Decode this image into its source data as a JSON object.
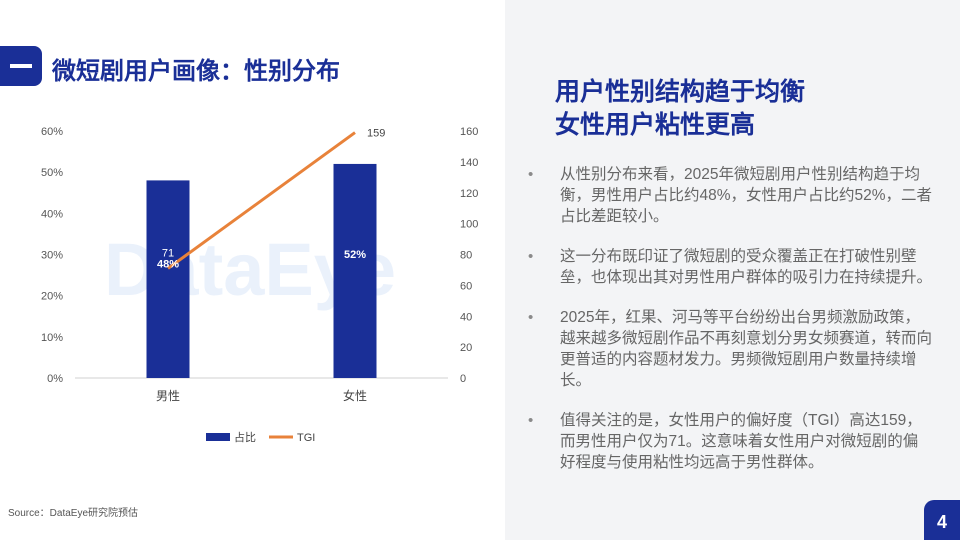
{
  "header": {
    "title": "微短剧用户画像：性别分布"
  },
  "watermark": "DataEye",
  "summary": {
    "headline_lines": [
      "用户性别结构趋于均衡",
      "女性用户粘性更高"
    ],
    "bullets": [
      "从性别分布来看，2025年微短剧用户性别结构趋于均衡，男性用户占比约48%，女性用户占比约52%，二者占比差距较小。",
      "这一分布既印证了微短剧的受众覆盖正在打破性别壁垒，也体现出其对男性用户群体的吸引力在持续提升。",
      "2025年，红果、河马等平台纷纷出台男频激励政策，越来越多微短剧作品不再刻意划分男女频赛道，转而向更普适的内容题材发力。男频微短剧用户数量持续增长。",
      "值得关注的是，女性用户的偏好度（TGI）高达159，而男性用户仅为71。这意味着女性用户对微短剧的偏好程度与使用粘性均远高于男性群体。"
    ]
  },
  "source": "Source：DataEye研究院预估",
  "page_number": "4",
  "colors": {
    "brand": "#1a2f97",
    "line": "#e8823a"
  },
  "chart_data": {
    "type": "bar",
    "categories": [
      "男性",
      "女性"
    ],
    "series": [
      {
        "name": "占比",
        "type": "bar",
        "axis": "left",
        "values": [
          48,
          52
        ],
        "labels": [
          "48%",
          "52%"
        ]
      },
      {
        "name": "TGI",
        "type": "line",
        "axis": "right",
        "values": [
          71,
          159
        ],
        "labels": [
          "71",
          "159"
        ]
      }
    ],
    "y_left": {
      "ticks": [
        0,
        10,
        20,
        30,
        40,
        50,
        60
      ],
      "tick_labels": [
        "0%",
        "10%",
        "20%",
        "30%",
        "40%",
        "50%",
        "60%"
      ],
      "range": [
        0,
        60
      ]
    },
    "y_right": {
      "ticks": [
        0,
        20,
        40,
        60,
        80,
        100,
        120,
        140,
        160
      ],
      "tick_labels": [
        "0",
        "20",
        "40",
        "60",
        "80",
        "100",
        "120",
        "140",
        "160"
      ],
      "range": [
        0,
        160
      ]
    },
    "legend_position": "bottom",
    "grid": false
  }
}
